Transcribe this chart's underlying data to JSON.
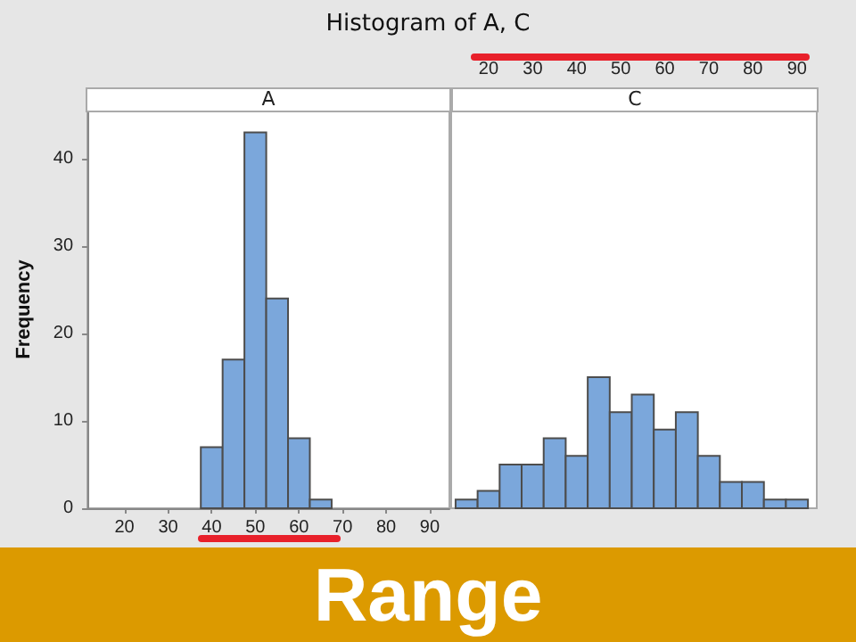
{
  "chart_data": [
    {
      "type": "histogram",
      "title": "Histogram of A, C",
      "subtitle": "A",
      "ylabel": "Frequency",
      "annotations": [
        "Range"
      ],
      "bins": [
        37.5,
        42.5,
        47.5,
        52.5,
        57.5,
        62.5,
        67.5
      ],
      "values": [
        7,
        17,
        43,
        24,
        8,
        1
      ],
      "color": "#7ba7db",
      "xlim": [
        11.5,
        94.5
      ],
      "xticks": [
        20,
        30,
        40,
        50,
        60,
        70,
        80,
        90
      ],
      "ylim": [
        0,
        45.5
      ],
      "yticks": [
        0,
        10,
        20,
        30,
        40
      ],
      "grid": false
    },
    {
      "type": "histogram",
      "subtitle": "C",
      "bins": [
        12.5,
        17.5,
        22.5,
        27.5,
        32.5,
        37.5,
        42.5,
        47.5,
        52.5,
        57.5,
        62.5,
        67.5,
        72.5,
        77.5,
        82.5,
        87.5,
        92.5
      ],
      "values": [
        1,
        2,
        5,
        5,
        8,
        6,
        15,
        11,
        13,
        9,
        11,
        6,
        3,
        3,
        1,
        1
      ],
      "color": "#7ba7db",
      "xlim": [
        11.5,
        94.5
      ],
      "xticks": [
        20,
        30,
        40,
        50,
        60,
        70,
        80,
        90
      ],
      "ylim": [
        0,
        45.5
      ],
      "tick_labels": "x",
      "grid": false
    }
  ]
}
